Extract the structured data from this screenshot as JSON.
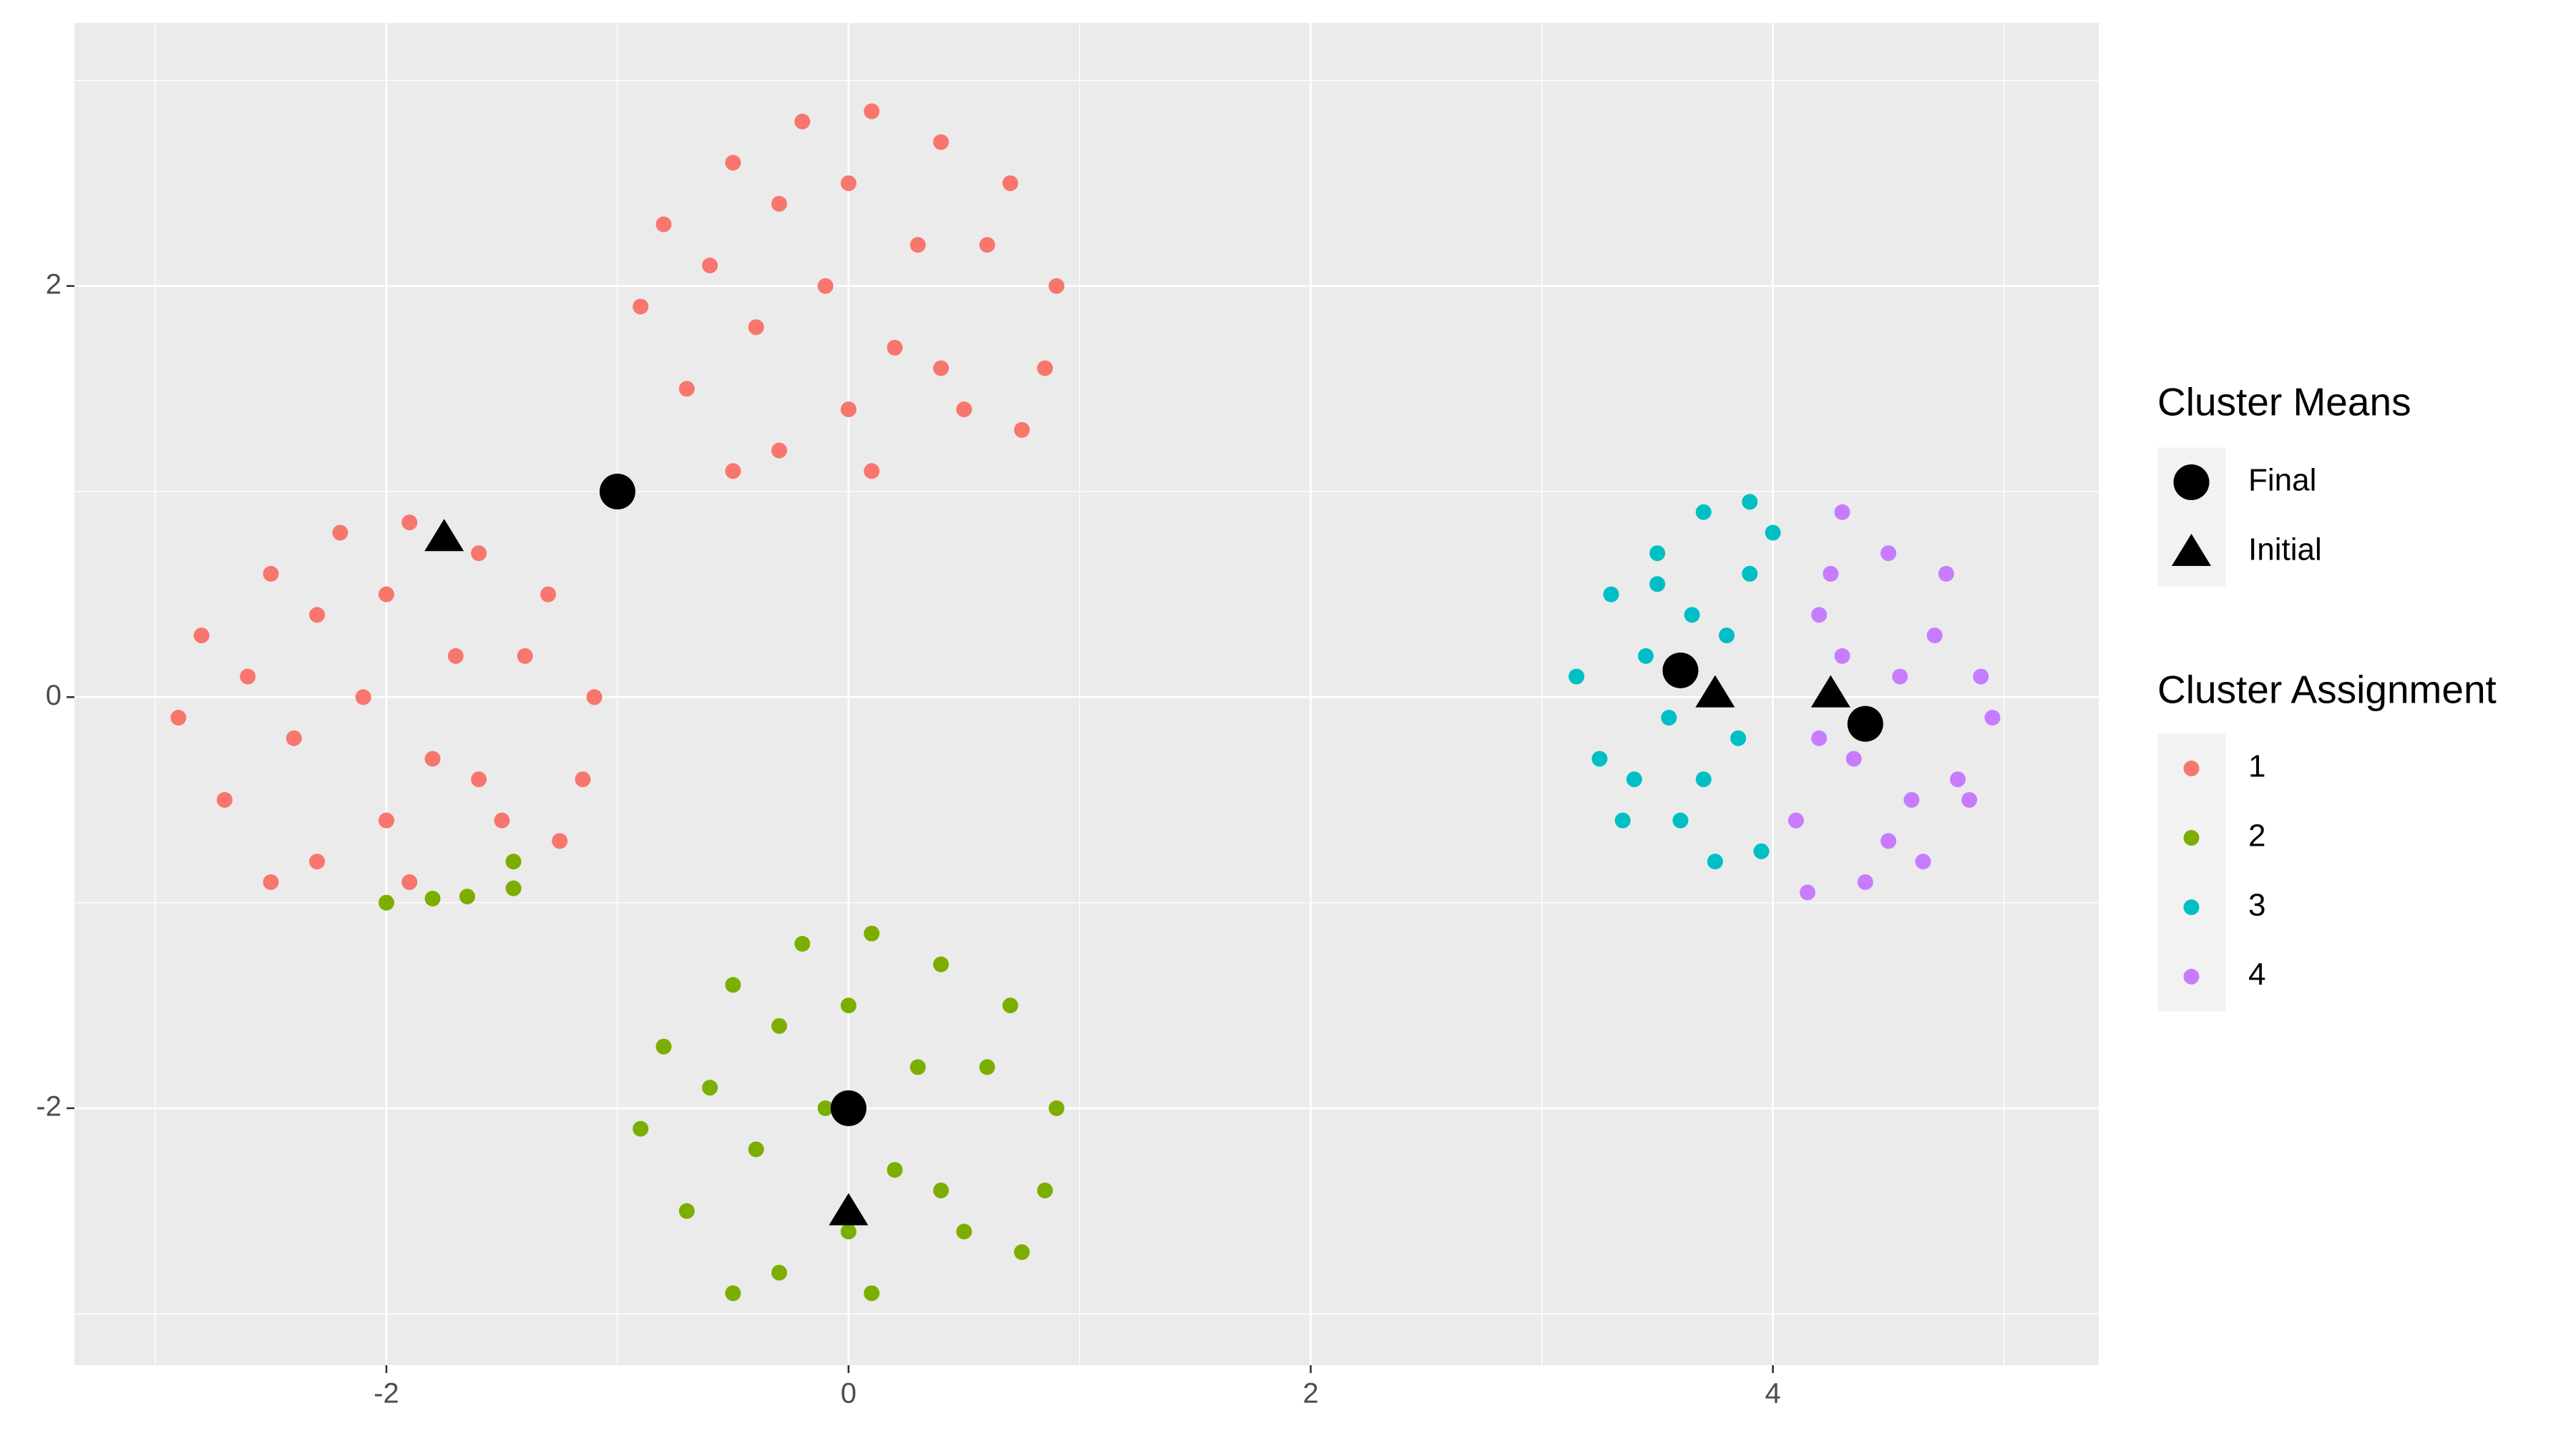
{
  "chart_data": {
    "type": "scatter",
    "xlim": [
      -3.35,
      5.41
    ],
    "ylim": [
      -3.25,
      3.28
    ],
    "xticks": [
      -2,
      0,
      2,
      4
    ],
    "yticks": [
      -2,
      0,
      2
    ],
    "x_minor_ticks": [
      -3,
      -1,
      1,
      3,
      5
    ],
    "y_minor_ticks": [
      -3,
      -1,
      1,
      3
    ],
    "grid": true,
    "color_legend_title": "Cluster Assignment",
    "shape_legend_title": "Cluster Means",
    "series": [
      {
        "name": "1",
        "color": "#F8766D",
        "x": [
          -0.8,
          -0.5,
          -0.2,
          0.1,
          0.4,
          0.7,
          0.9,
          -0.9,
          -0.6,
          -0.3,
          0,
          0.3,
          0.6,
          0.85,
          -0.7,
          -0.4,
          -0.1,
          0.2,
          0.5,
          0.75,
          -0.3,
          0.1,
          0.4,
          -0.5,
          0.0,
          -2.8,
          -2.5,
          -2.2,
          -1.9,
          -1.6,
          -1.3,
          -1.1,
          -2.9,
          -2.6,
          -2.3,
          -2.0,
          -1.7,
          -1.4,
          -1.15,
          -2.7,
          -2.4,
          -2.1,
          -1.8,
          -1.5,
          -1.25,
          -2.3,
          -1.9,
          -1.6,
          -2.5,
          -2.0
        ],
        "y": [
          2.3,
          2.6,
          2.8,
          2.85,
          2.7,
          2.5,
          2.0,
          1.9,
          2.1,
          2.4,
          2.5,
          2.2,
          2.2,
          1.6,
          1.5,
          1.8,
          2.0,
          1.7,
          1.4,
          1.3,
          1.2,
          1.1,
          1.6,
          1.1,
          1.4,
          0.3,
          0.6,
          0.8,
          0.85,
          0.7,
          0.5,
          0.0,
          -0.1,
          0.1,
          0.4,
          0.5,
          0.2,
          0.2,
          -0.4,
          -0.5,
          -0.2,
          0.0,
          -0.3,
          -0.6,
          -0.7,
          -0.8,
          -0.9,
          -0.4,
          -0.9,
          -0.6
        ]
      },
      {
        "name": "2",
        "color": "#7CAE00",
        "x": [
          -0.8,
          -0.5,
          -0.2,
          0.1,
          0.4,
          0.7,
          0.9,
          -0.9,
          -0.6,
          -0.3,
          0,
          0.3,
          0.6,
          0.85,
          -0.7,
          -0.4,
          -0.1,
          0.2,
          0.5,
          0.75,
          -0.3,
          0.1,
          0.4,
          -0.5,
          0.0,
          -2.0,
          -1.8,
          -1.65,
          -1.45,
          -1.45
        ],
        "y": [
          -1.7,
          -1.4,
          -1.2,
          -1.15,
          -1.3,
          -1.5,
          -2.0,
          -2.1,
          -1.9,
          -1.6,
          -1.5,
          -1.8,
          -1.8,
          -2.4,
          -2.5,
          -2.2,
          -2.0,
          -2.3,
          -2.6,
          -2.7,
          -2.8,
          -2.9,
          -2.4,
          -2.9,
          -2.6,
          -1.0,
          -0.98,
          -0.97,
          -0.93,
          -0.8
        ]
      },
      {
        "name": "3",
        "color": "#00BFC4",
        "x": [
          3.15,
          3.3,
          3.4,
          3.5,
          3.6,
          3.7,
          3.8,
          3.9,
          4.0,
          3.25,
          3.45,
          3.55,
          3.65,
          3.75,
          3.85,
          3.95,
          3.35,
          3.5,
          3.7,
          3.9
        ],
        "y": [
          0.1,
          0.5,
          -0.4,
          0.7,
          -0.6,
          0.9,
          0.3,
          0.95,
          0.8,
          -0.3,
          0.2,
          -0.1,
          0.4,
          -0.8,
          -0.2,
          -0.75,
          -0.6,
          0.55,
          -0.4,
          0.6
        ]
      },
      {
        "name": "4",
        "color": "#C77CFF",
        "x": [
          4.1,
          4.2,
          4.3,
          4.4,
          4.5,
          4.6,
          4.7,
          4.8,
          4.9,
          4.95,
          4.15,
          4.25,
          4.35,
          4.55,
          4.65,
          4.75,
          4.85,
          4.3,
          4.5,
          4.2
        ],
        "y": [
          -0.6,
          0.4,
          0.9,
          -0.9,
          0.7,
          -0.5,
          0.3,
          -0.4,
          0.1,
          -0.1,
          -0.95,
          0.6,
          -0.3,
          0.1,
          -0.8,
          0.6,
          -0.5,
          0.2,
          -0.7,
          -0.2
        ]
      }
    ],
    "means": [
      {
        "name": "Final",
        "shape": "circle",
        "color": "#000000",
        "x": [
          -1,
          0,
          3.6,
          4.4
        ],
        "y": [
          1,
          -2,
          0.13,
          -0.13
        ]
      },
      {
        "name": "Initial",
        "shape": "triangle",
        "color": "#000000",
        "x": [
          -1.75,
          0,
          3.75,
          4.25
        ],
        "y": [
          0.78,
          -2.5,
          0.02,
          0.02
        ]
      }
    ]
  }
}
